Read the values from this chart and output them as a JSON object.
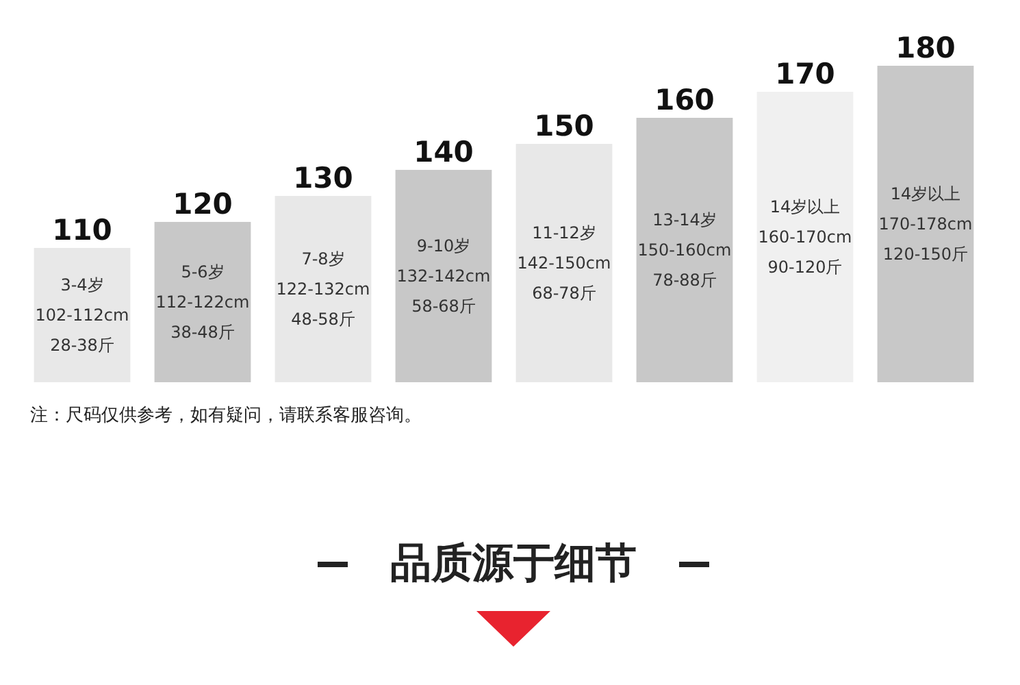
{
  "chart_data": {
    "type": "bar",
    "categories": [
      "3-4岁\n102-112cm\n28-38斤",
      "5-6岁\n112-122cm\n38-48斤",
      "7-8岁\n122-132cm\n48-58斤",
      "9-10岁\n132-142cm\n58-68斤",
      "11-12岁\n142-150cm\n68-78斤",
      "13-14岁\n150-160cm\n78-88斤",
      "14岁以上\n160-170cm\n90-120斤",
      "14岁以上\n170-178cm\n120-150斤"
    ],
    "values": [
      110,
      120,
      130,
      140,
      150,
      160,
      170,
      180
    ],
    "colors": [
      "#e8e8e8",
      "#c8c8c8",
      "#e8e8e8",
      "#c8c8c8",
      "#e8e8e8",
      "#c8c8c8",
      "#f0f0f0",
      "#c8c8c8"
    ],
    "ylim": [
      58.4,
      180
    ],
    "data_labels": true,
    "annotations": [
      "注：尺码仅供参考，如有疑问，请联系客服咨询。",
      "品质源于细节"
    ]
  }
}
